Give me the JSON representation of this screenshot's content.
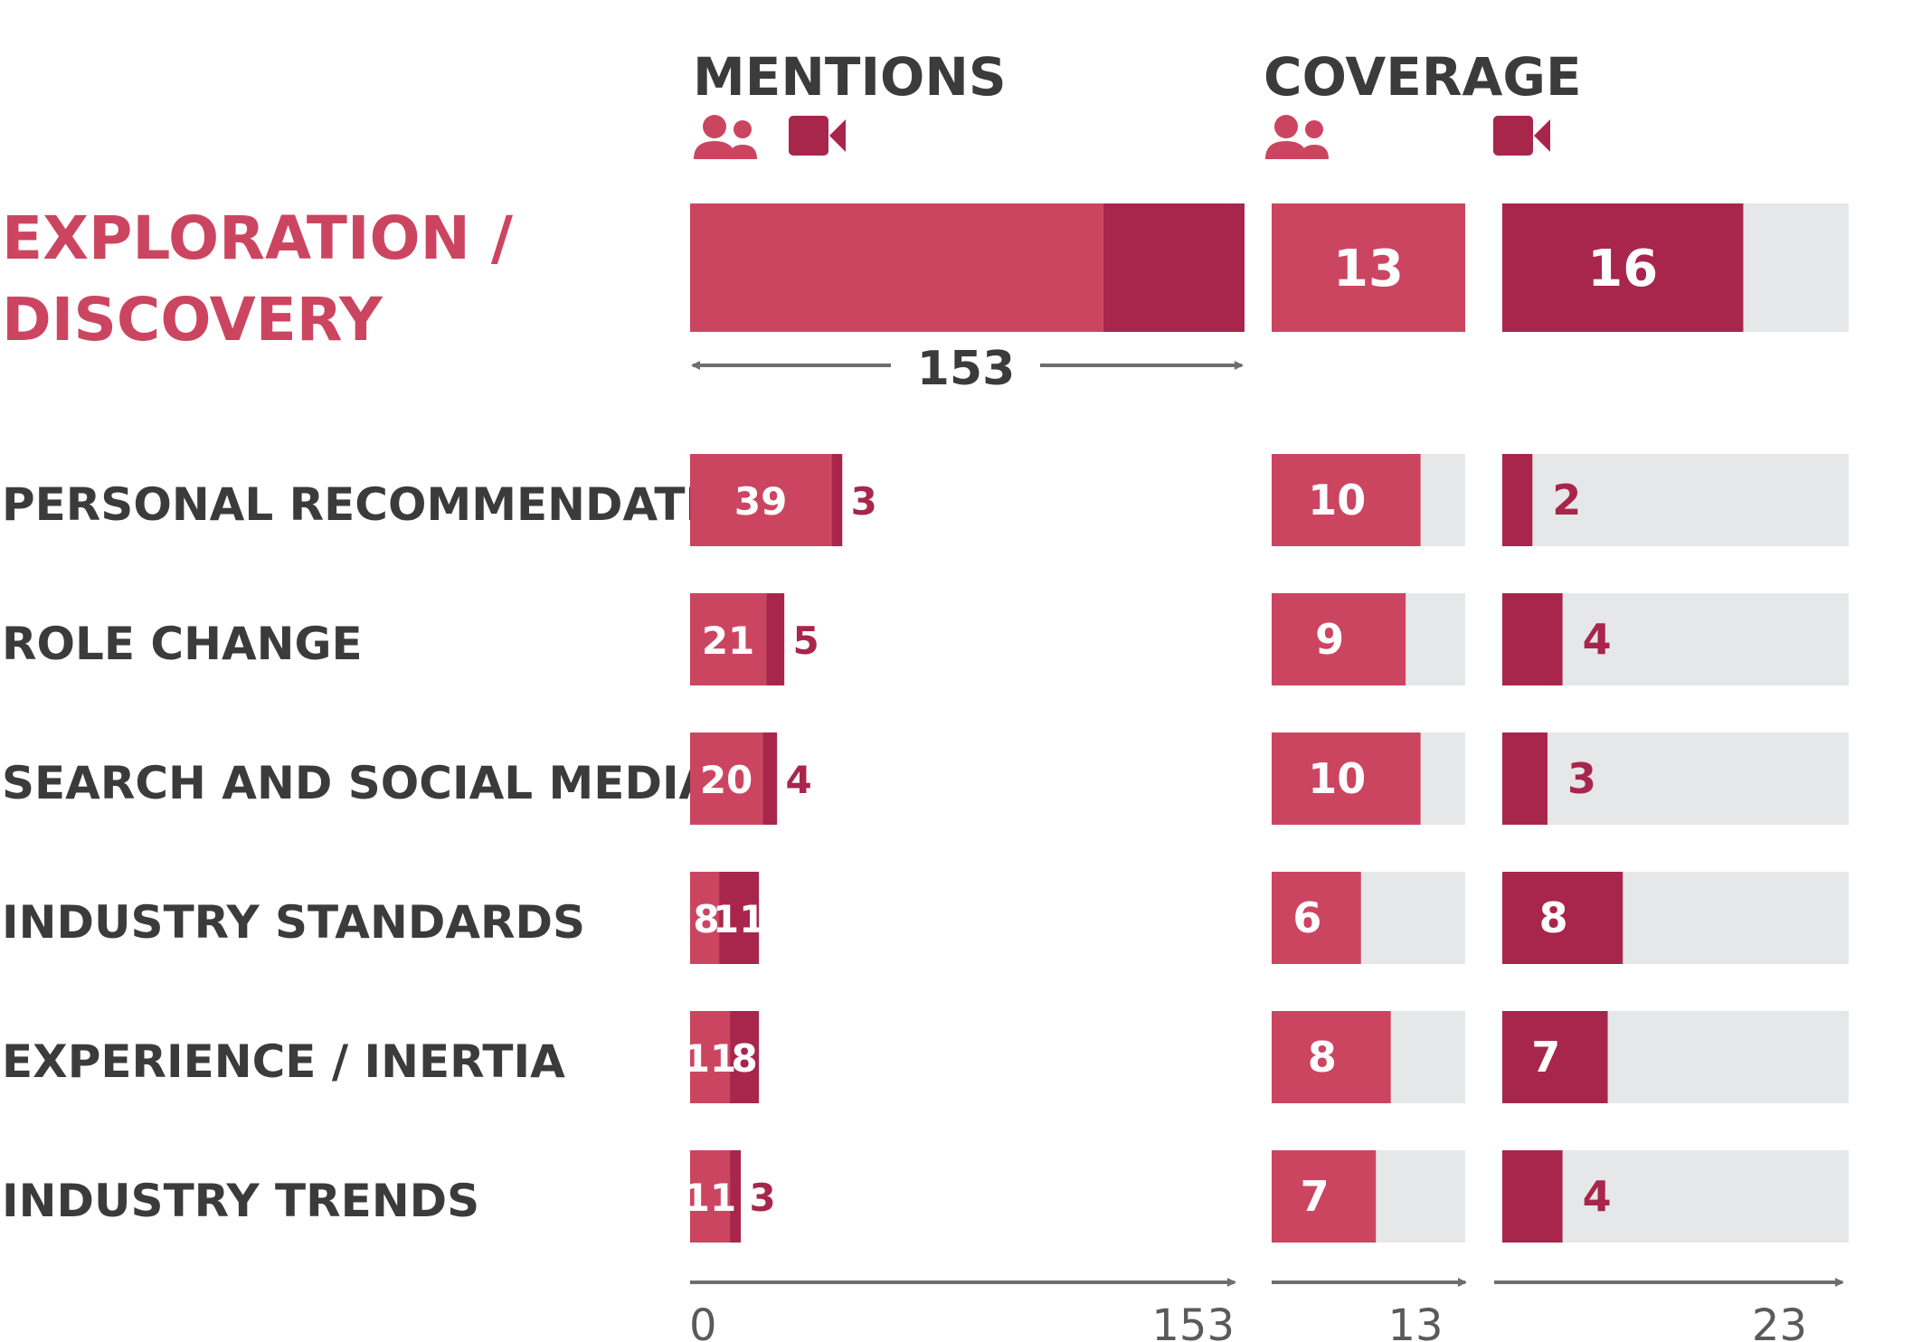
{
  "colors": {
    "in_person": "#cc4560",
    "video": "#a8264b",
    "track": "#e6e7e8",
    "category_label": "#3b3b3b",
    "total_label": "#cc4560",
    "axis": "#6d6e71"
  },
  "headers": {
    "mentions": "MENTIONS",
    "coverage": "COVERAGE",
    "icons": [
      "people-icon",
      "video-camera-icon"
    ]
  },
  "chart_data": {
    "type": "bar",
    "series": [
      {
        "name": "In person",
        "icon": "people-icon"
      },
      {
        "name": "Video",
        "icon": "video-camera-icon"
      }
    ],
    "total": {
      "label": "EXPLORATION / DISCOVERY",
      "label_lines": [
        "EXPLORATION /",
        "DISCOVERY"
      ],
      "mentions_in_person": 114,
      "mentions_video": 39,
      "mentions_total": 153,
      "mentions_total_label": "153",
      "coverage_in_person": 13,
      "coverage_in_person_label": "13",
      "coverage_video": 16,
      "coverage_video_label": "16"
    },
    "categories": [
      "PERSONAL RECOMMENDATIONS",
      "ROLE CHANGE",
      "SEARCH AND SOCIAL MEDIA",
      "INDUSTRY STANDARDS",
      "EXPERIENCE / INERTIA",
      "INDUSTRY TRENDS"
    ],
    "mentions_in_person": [
      39,
      21,
      20,
      8,
      11,
      11
    ],
    "mentions_video": [
      3,
      5,
      4,
      11,
      8,
      3
    ],
    "coverage_in_person": [
      10,
      9,
      10,
      6,
      8,
      7
    ],
    "coverage_video": [
      2,
      4,
      3,
      8,
      7,
      4
    ],
    "axes": {
      "mentions": {
        "min": 0,
        "max": 153,
        "min_label": "0",
        "max_label": "153"
      },
      "coverage_in_person": {
        "max": 13,
        "max_label": "13"
      },
      "coverage_video": {
        "max": 23,
        "max_label": "23"
      }
    }
  }
}
